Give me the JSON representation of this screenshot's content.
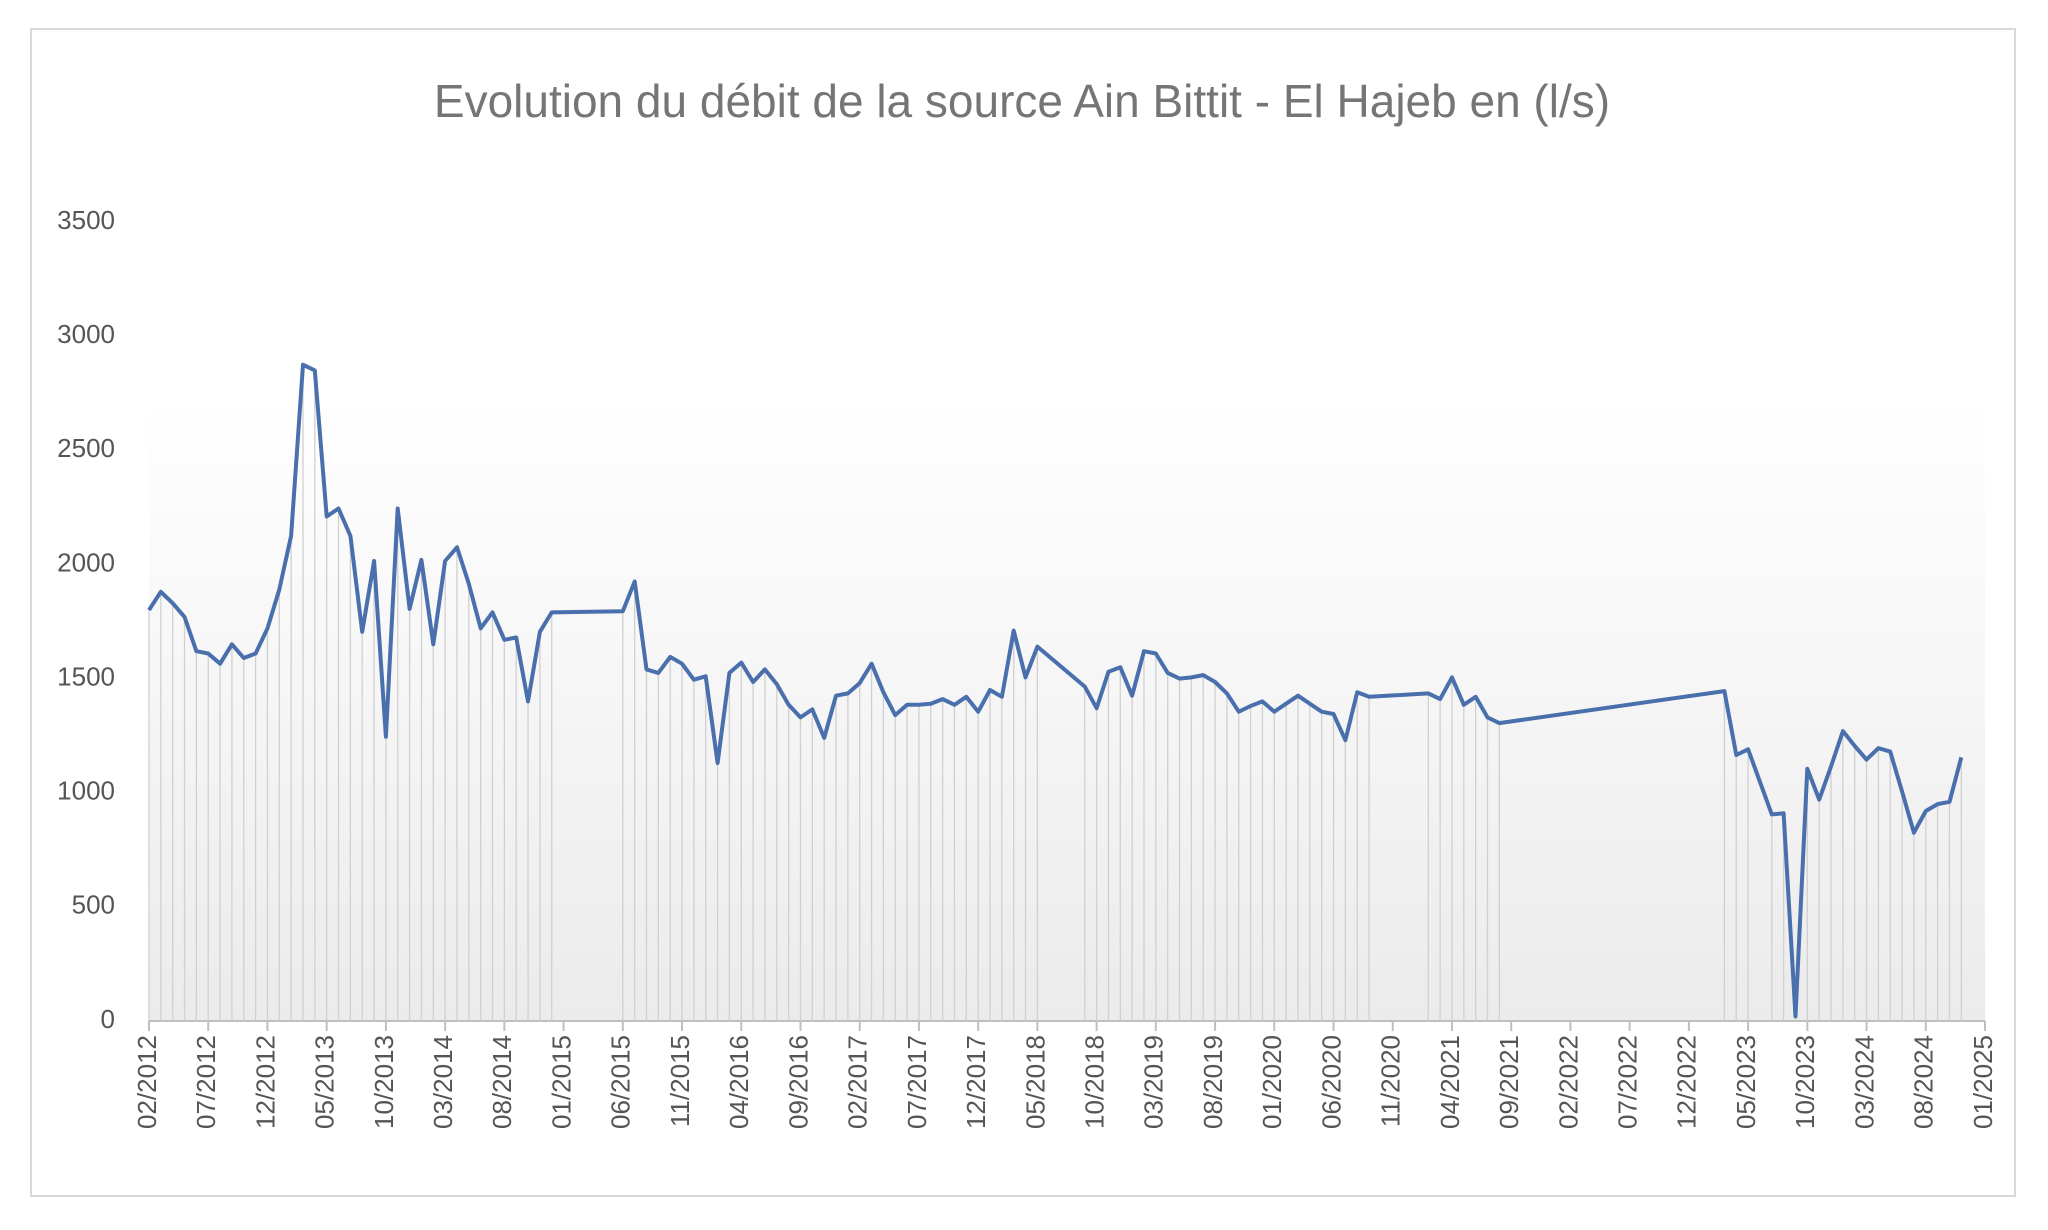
{
  "chart_data": {
    "type": "line",
    "title": "Evolution du débit de la source Ain Bittit - El Hajeb en (l/s)",
    "color": "#4a6fad",
    "drop_lines": true,
    "x": [
      "2012-02",
      "2012-03",
      "2012-04",
      "2012-05",
      "2012-06",
      "2012-07",
      "2012-08",
      "2012-09",
      "2012-10",
      "2012-11",
      "2012-12",
      "2013-01",
      "2013-02",
      "2013-03",
      "2013-04",
      "2013-05",
      "2013-06",
      "2013-07",
      "2013-08",
      "2013-09",
      "2013-10",
      "2013-11",
      "2013-12",
      "2014-01",
      "2014-02",
      "2014-03",
      "2014-04",
      "2014-05",
      "2014-06",
      "2014-07",
      "2014-08",
      "2014-09",
      "2014-10",
      "2014-11",
      "2014-12",
      "2015-06",
      "2015-07",
      "2015-08",
      "2015-09",
      "2015-10",
      "2015-11",
      "2015-12",
      "2016-01",
      "2016-02",
      "2016-03",
      "2016-04",
      "2016-05",
      "2016-06",
      "2016-07",
      "2016-08",
      "2016-09",
      "2016-10",
      "2016-11",
      "2016-12",
      "2017-01",
      "2017-02",
      "2017-03",
      "2017-04",
      "2017-05",
      "2017-06",
      "2017-07",
      "2017-08",
      "2017-09",
      "2017-10",
      "2017-11",
      "2017-12",
      "2018-01",
      "2018-02",
      "2018-03",
      "2018-04",
      "2018-05",
      "2018-09",
      "2018-10",
      "2018-11",
      "2018-12",
      "2019-01",
      "2019-02",
      "2019-03",
      "2019-04",
      "2019-05",
      "2019-06",
      "2019-07",
      "2019-08",
      "2019-09",
      "2019-10",
      "2019-11",
      "2019-12",
      "2020-01",
      "2020-02",
      "2020-03",
      "2020-04",
      "2020-05",
      "2020-06",
      "2020-07",
      "2020-08",
      "2020-09",
      "2021-02",
      "2021-03",
      "2021-04",
      "2021-05",
      "2021-06",
      "2021-07",
      "2021-08",
      "2023-03",
      "2023-04",
      "2023-05",
      "2023-07",
      "2023-08",
      "2023-09",
      "2023-10",
      "2023-11",
      "2023-12",
      "2024-01",
      "2024-02",
      "2024-03",
      "2024-04",
      "2024-05",
      "2024-06",
      "2024-07",
      "2024-08",
      "2024-09",
      "2024-10",
      "2024-11"
    ],
    "values": [
      1800,
      1880,
      1830,
      1770,
      1620,
      1610,
      1565,
      1650,
      1590,
      1610,
      1720,
      1890,
      2125,
      2875,
      2850,
      2210,
      2245,
      2125,
      1705,
      2015,
      1245,
      2245,
      1805,
      2020,
      1650,
      2015,
      2075,
      1915,
      1720,
      1790,
      1670,
      1680,
      1400,
      1705,
      1790,
      1795,
      1925,
      1540,
      1525,
      1595,
      1565,
      1495,
      1510,
      1130,
      1525,
      1570,
      1485,
      1540,
      1475,
      1385,
      1330,
      1365,
      1240,
      1425,
      1435,
      1480,
      1565,
      1440,
      1340,
      1385,
      1385,
      1390,
      1410,
      1385,
      1420,
      1355,
      1450,
      1420,
      1710,
      1505,
      1640,
      1465,
      1370,
      1530,
      1550,
      1425,
      1620,
      1610,
      1525,
      1500,
      1505,
      1515,
      1485,
      1435,
      1355,
      1380,
      1400,
      1355,
      1390,
      1425,
      1390,
      1355,
      1345,
      1230,
      1440,
      1420,
      1435,
      1410,
      1505,
      1385,
      1420,
      1330,
      1305,
      1445,
      1165,
      1190,
      905,
      910,
      20,
      1105,
      970,
      1115,
      1270,
      1205,
      1145,
      1195,
      1180,
      1005,
      825,
      920,
      950,
      960,
      1155
    ],
    "xlim": [
      "2012-02",
      "2025-01"
    ],
    "xticks": [
      {
        "value": "2012-02",
        "label": "02/2012"
      },
      {
        "value": "2012-07",
        "label": "07/2012"
      },
      {
        "value": "2012-12",
        "label": "12/2012"
      },
      {
        "value": "2013-05",
        "label": "05/2013"
      },
      {
        "value": "2013-10",
        "label": "10/2013"
      },
      {
        "value": "2014-03",
        "label": "03/2014"
      },
      {
        "value": "2014-08",
        "label": "08/2014"
      },
      {
        "value": "2015-01",
        "label": "01/2015"
      },
      {
        "value": "2015-06",
        "label": "06/2015"
      },
      {
        "value": "2015-11",
        "label": "11/2015"
      },
      {
        "value": "2016-04",
        "label": "04/2016"
      },
      {
        "value": "2016-09",
        "label": "09/2016"
      },
      {
        "value": "2017-02",
        "label": "02/2017"
      },
      {
        "value": "2017-07",
        "label": "07/2017"
      },
      {
        "value": "2017-12",
        "label": "12/2017"
      },
      {
        "value": "2018-05",
        "label": "05/2018"
      },
      {
        "value": "2018-10",
        "label": "10/2018"
      },
      {
        "value": "2019-03",
        "label": "03/2019"
      },
      {
        "value": "2019-08",
        "label": "08/2019"
      },
      {
        "value": "2020-01",
        "label": "01/2020"
      },
      {
        "value": "2020-06",
        "label": "06/2020"
      },
      {
        "value": "2020-11",
        "label": "11/2020"
      },
      {
        "value": "2021-04",
        "label": "04/2021"
      },
      {
        "value": "2021-09",
        "label": "09/2021"
      },
      {
        "value": "2022-02",
        "label": "02/2022"
      },
      {
        "value": "2022-07",
        "label": "07/2022"
      },
      {
        "value": "2022-12",
        "label": "12/2022"
      },
      {
        "value": "2023-05",
        "label": "05/2023"
      },
      {
        "value": "2023-10",
        "label": "10/2023"
      },
      {
        "value": "2024-03",
        "label": "03/2024"
      },
      {
        "value": "2024-08",
        "label": "08/2024"
      },
      {
        "value": "2025-01",
        "label": "01/2025"
      }
    ],
    "ylim": [
      0,
      3500
    ],
    "yticks": [
      0,
      500,
      1000,
      1500,
      2000,
      2500,
      3000,
      3500
    ],
    "grid": false
  }
}
